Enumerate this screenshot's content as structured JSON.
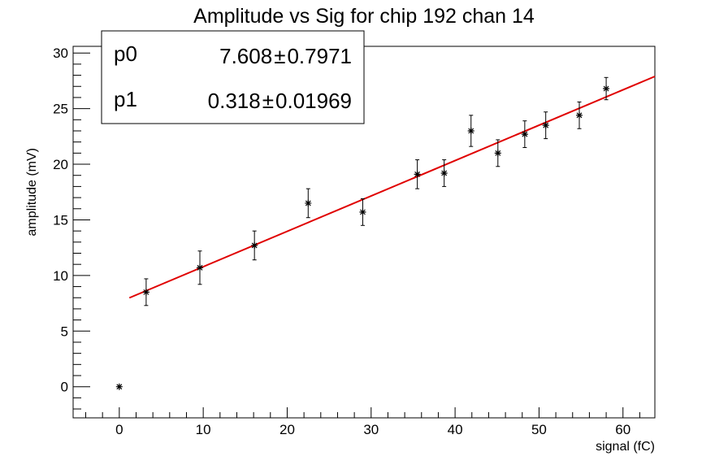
{
  "chart_data": {
    "type": "scatter",
    "title": "Amplitude vs Sig for chip 192 chan 14",
    "xlabel": "signal (fC)",
    "ylabel": "amplitude (mV)",
    "xlim": [
      -5.5,
      63.8
    ],
    "ylim": [
      -2.8,
      30.6
    ],
    "x_ticks": [
      0,
      10,
      20,
      30,
      40,
      50,
      60
    ],
    "y_ticks": [
      0,
      5,
      10,
      15,
      20,
      25,
      30
    ],
    "grid": false,
    "points": [
      {
        "x": 0.0,
        "y": 0.0,
        "err": 0.0
      },
      {
        "x": 3.2,
        "y": 8.5,
        "err": 1.2
      },
      {
        "x": 9.6,
        "y": 10.7,
        "err": 1.5
      },
      {
        "x": 16.1,
        "y": 12.7,
        "err": 1.3
      },
      {
        "x": 22.5,
        "y": 16.5,
        "err": 1.3
      },
      {
        "x": 29.0,
        "y": 15.7,
        "err": 1.2
      },
      {
        "x": 35.5,
        "y": 19.1,
        "err": 1.3
      },
      {
        "x": 38.7,
        "y": 19.2,
        "err": 1.2
      },
      {
        "x": 41.9,
        "y": 23.0,
        "err": 1.4
      },
      {
        "x": 45.1,
        "y": 21.0,
        "err": 1.2
      },
      {
        "x": 48.3,
        "y": 22.7,
        "err": 1.2
      },
      {
        "x": 50.8,
        "y": 23.5,
        "err": 1.2
      },
      {
        "x": 54.8,
        "y": 24.4,
        "err": 1.2
      },
      {
        "x": 58.0,
        "y": 26.8,
        "err": 1.0
      }
    ],
    "fit": {
      "x_range": [
        1.2,
        63.8
      ],
      "p0": 7.608,
      "p1": 0.318,
      "color": "#e00000"
    },
    "stats": [
      {
        "name": "p0",
        "value": "7.608",
        "pm": "±",
        "error": "0.7971"
      },
      {
        "name": "p1",
        "value": "0.318",
        "pm": "±",
        "error": "0.01969"
      }
    ],
    "legend_position": "top-left"
  }
}
